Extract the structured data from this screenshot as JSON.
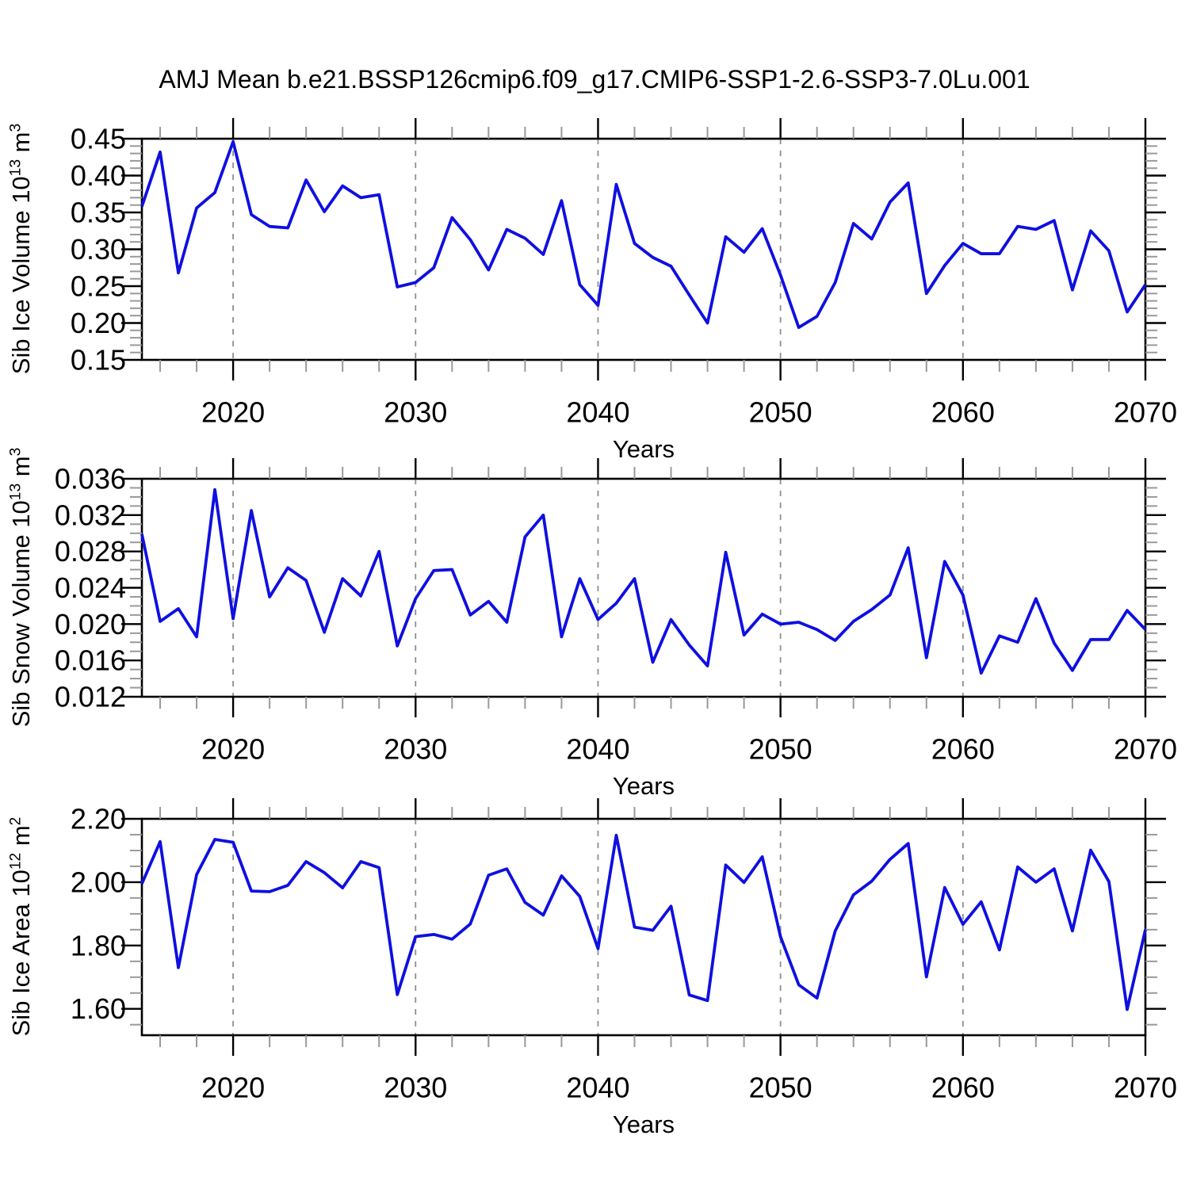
{
  "title": "AMJ Mean b.e21.BSSP126cmip6.f09_g17.CMIP6-SSP1-2.6-SSP3-7.0Lu.001",
  "colors": {
    "line": "#0F0FE1",
    "frame": "#000000",
    "major_tick": "#000000",
    "minor_tick": "#999999",
    "grid": "#8F8F8F",
    "text": "#000000",
    "background": "#FFFFFF"
  },
  "x_axis": {
    "label": "Years",
    "min": 2015,
    "max": 2070,
    "major_ticks": [
      2020,
      2030,
      2040,
      2050,
      2060,
      2070
    ],
    "major_tick_labels": [
      "2020",
      "2030",
      "2040",
      "2050",
      "2060",
      "2070"
    ],
    "minor_step": 2,
    "grid_lines": [
      2020,
      2030,
      2040,
      2050,
      2060
    ]
  },
  "years": [
    2015,
    2016,
    2017,
    2018,
    2019,
    2020,
    2021,
    2022,
    2023,
    2024,
    2025,
    2026,
    2027,
    2028,
    2029,
    2030,
    2031,
    2032,
    2033,
    2034,
    2035,
    2036,
    2037,
    2038,
    2039,
    2040,
    2041,
    2042,
    2043,
    2044,
    2045,
    2046,
    2047,
    2048,
    2049,
    2050,
    2051,
    2052,
    2053,
    2054,
    2055,
    2056,
    2057,
    2058,
    2059,
    2060,
    2061,
    2062,
    2063,
    2064,
    2065,
    2066,
    2067,
    2068,
    2069,
    2070
  ],
  "chart_data": [
    {
      "type": "line",
      "name": "sib-ice-volume",
      "ylabel": {
        "main": "Sib Ice Volume 10",
        "sup1": "13",
        "mid": " m",
        "sup2": "3"
      },
      "xlabel": "Years",
      "ylim": [
        0.15,
        0.45
      ],
      "yticks": [
        0.15,
        0.2,
        0.25,
        0.3,
        0.35,
        0.4,
        0.45
      ],
      "ytick_labels": [
        "0.15",
        "0.20",
        "0.25",
        "0.30",
        "0.35",
        "0.40",
        "0.45"
      ],
      "minor_step": 0.01,
      "grid": "dashed-vertical-decades",
      "values": [
        0.358,
        0.432,
        0.268,
        0.356,
        0.377,
        0.446,
        0.347,
        0.331,
        0.329,
        0.394,
        0.351,
        0.386,
        0.37,
        0.374,
        0.249,
        0.255,
        0.275,
        0.343,
        0.313,
        0.272,
        0.327,
        0.315,
        0.293,
        0.366,
        0.252,
        0.224,
        0.388,
        0.308,
        0.289,
        0.277,
        0.238,
        0.2,
        0.317,
        0.296,
        0.328,
        0.265,
        0.194,
        0.209,
        0.255,
        0.335,
        0.314,
        0.364,
        0.39,
        0.24,
        0.278,
        0.308,
        0.294,
        0.294,
        0.331,
        0.327,
        0.339,
        0.245,
        0.325,
        0.298,
        0.215,
        0.252
      ]
    },
    {
      "type": "line",
      "name": "sib-snow-volume",
      "ylabel": {
        "main": "Sib Snow Volume 10",
        "sup1": "13",
        "mid": " m",
        "sup2": "3"
      },
      "xlabel": "Years",
      "ylim": [
        0.012,
        0.036
      ],
      "yticks": [
        0.012,
        0.016,
        0.02,
        0.024,
        0.028,
        0.032,
        0.036
      ],
      "ytick_labels": [
        "0.012",
        "0.016",
        "0.020",
        "0.024",
        "0.028",
        "0.032",
        "0.036"
      ],
      "minor_step": 0.001,
      "grid": "dashed-vertical-decades",
      "values": [
        0.0299,
        0.0203,
        0.0217,
        0.0186,
        0.0348,
        0.0206,
        0.0325,
        0.023,
        0.0262,
        0.0248,
        0.0191,
        0.025,
        0.0231,
        0.028,
        0.0176,
        0.0228,
        0.0259,
        0.026,
        0.021,
        0.0225,
        0.0202,
        0.0296,
        0.032,
        0.0186,
        0.025,
        0.0205,
        0.0223,
        0.025,
        0.0158,
        0.0205,
        0.0177,
        0.0154,
        0.0279,
        0.0188,
        0.0211,
        0.02,
        0.0202,
        0.0194,
        0.0182,
        0.0203,
        0.0216,
        0.0232,
        0.0284,
        0.0163,
        0.0269,
        0.0232,
        0.0146,
        0.0187,
        0.018,
        0.0228,
        0.0179,
        0.0149,
        0.0183,
        0.0183,
        0.0215,
        0.0194
      ]
    },
    {
      "type": "line",
      "name": "sib-ice-area",
      "ylabel": {
        "main": "Sib Ice Area 10",
        "sup1": "12",
        "mid": " m",
        "sup2": "2"
      },
      "xlabel": "Years",
      "ylim": [
        1.5167,
        2.2
      ],
      "yticks": [
        1.6,
        1.8,
        2.0,
        2.2
      ],
      "ytick_labels": [
        "1.60",
        "1.80",
        "2.00",
        "2.20"
      ],
      "minor_step": 0.05,
      "grid": "dashed-vertical-decades",
      "values": [
        1.995,
        2.128,
        1.73,
        2.024,
        2.135,
        2.126,
        1.972,
        1.97,
        1.99,
        2.065,
        2.03,
        1.982,
        2.065,
        2.046,
        1.645,
        1.828,
        1.835,
        1.82,
        1.868,
        2.022,
        2.042,
        1.936,
        1.896,
        2.02,
        1.955,
        1.79,
        2.148,
        1.858,
        1.848,
        1.924,
        1.644,
        1.626,
        2.054,
        1.999,
        2.08,
        1.828,
        1.676,
        1.634,
        1.846,
        1.96,
        2.003,
        2.072,
        2.122,
        1.701,
        1.983,
        1.867,
        1.938,
        1.786,
        2.048,
        2.0,
        2.042,
        1.846,
        2.101,
        2.002,
        1.598,
        1.85
      ]
    }
  ]
}
